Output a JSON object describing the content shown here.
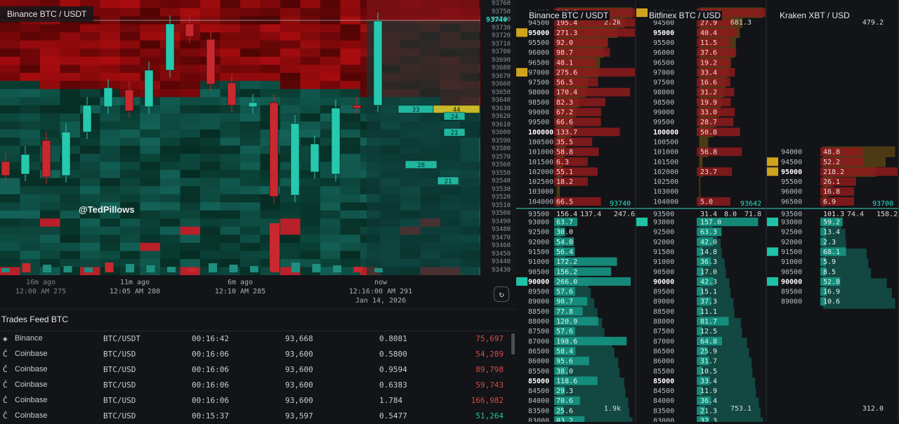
{
  "heatmap": {
    "title": "Binance BTC / USDT",
    "watermark": "@TedPillows",
    "price_labels": [
      "93760",
      "93750",
      "93740",
      "93730",
      "93720",
      "93710",
      "93700",
      "93690",
      "93680",
      "93670",
      "93660",
      "93650",
      "93640",
      "93630",
      "93620",
      "93610",
      "93600",
      "93590",
      "93580",
      "93570",
      "93560",
      "93550",
      "93540",
      "93530",
      "93520",
      "93510",
      "93500",
      "93490",
      "93480",
      "93470",
      "93460",
      "93450",
      "93440",
      "93430"
    ],
    "current_price": "93740",
    "bubbles": [
      "33",
      "44",
      "24",
      "21",
      "28",
      "21"
    ],
    "time_ticks": [
      {
        "rel": "16m ago",
        "abs": "12:00 AM 275"
      },
      {
        "rel": "11m ago",
        "abs": "12:05 AM 280"
      },
      {
        "rel": "6m ago",
        "abs": "12:10 AM 285"
      },
      {
        "rel": "now",
        "abs": "12:16:00 AM 291",
        "date": "Jan 14, 2026"
      }
    ],
    "refresh_icon": "refresh-icon"
  },
  "trades_feed": {
    "title": "Trades Feed BTC",
    "rows": [
      {
        "exchange": "Binance",
        "icon": "binance-icon",
        "pair": "BTC/USDT",
        "time": "00:16:42",
        "price": "93,668",
        "qty": "0.8081",
        "value": "75,697",
        "side": "sell"
      },
      {
        "exchange": "Coinbase",
        "icon": "coinbase-icon",
        "pair": "BTC/USD",
        "time": "00:16:06",
        "price": "93,600",
        "qty": "0.5800",
        "value": "54,289",
        "side": "sell"
      },
      {
        "exchange": "Coinbase",
        "icon": "coinbase-icon",
        "pair": "BTC/USD",
        "time": "00:16:06",
        "price": "93,600",
        "qty": "0.9594",
        "value": "89,798",
        "side": "sell"
      },
      {
        "exchange": "Coinbase",
        "icon": "coinbase-icon",
        "pair": "BTC/USD",
        "time": "00:16:06",
        "price": "93,600",
        "qty": "0.6383",
        "value": "59,743",
        "side": "sell"
      },
      {
        "exchange": "Coinbase",
        "icon": "coinbase-icon",
        "pair": "BTC/USD",
        "time": "00:16:06",
        "price": "93,600",
        "qty": "1.784",
        "value": "166,982",
        "side": "sell"
      },
      {
        "exchange": "Coinbase",
        "icon": "coinbase-icon",
        "pair": "BTC/USD",
        "time": "00:15:37",
        "price": "93,597",
        "qty": "0.5477",
        "value": "51,264",
        "side": "buy"
      }
    ]
  },
  "orderbooks": [
    {
      "title": "Binance BTC / USDT",
      "top_total": "2.2k",
      "bottom_total": "1.9k",
      "mid_price": "93740",
      "mid_row": {
        "price": "93500",
        "ask": "156.4",
        "bid": "137.4",
        "imbalance": "247.6"
      },
      "asks": [
        {
          "price": "104000",
          "qty": "66.5"
        },
        {
          "price": "103000",
          "qty": ""
        },
        {
          "price": "102500",
          "qty": "18.2"
        },
        {
          "price": "102000",
          "qty": "55.1"
        },
        {
          "price": "101500",
          "qty": "6.3"
        },
        {
          "price": "101000",
          "qty": "58.8"
        },
        {
          "price": "100500",
          "qty": "35.5"
        },
        {
          "price": "100000",
          "qty": "133.7"
        },
        {
          "price": "99500",
          "qty": "66.6"
        },
        {
          "price": "99000",
          "qty": "67.2"
        },
        {
          "price": "98500",
          "qty": "82.3"
        },
        {
          "price": "98000",
          "qty": "170.4"
        },
        {
          "price": "97500",
          "qty": "56.5"
        },
        {
          "price": "97000",
          "qty": "275.6"
        },
        {
          "price": "96500",
          "qty": "48.1"
        },
        {
          "price": "96000",
          "qty": "98.7"
        },
        {
          "price": "95500",
          "qty": "92.0"
        },
        {
          "price": "95000",
          "qty": "271.3"
        },
        {
          "price": "94500",
          "qty": "195.4"
        },
        {
          "price": "94000",
          "qty": "207.3"
        }
      ],
      "bids": [
        {
          "price": "93000",
          "qty": "63.7"
        },
        {
          "price": "92500",
          "qty": "30.0"
        },
        {
          "price": "92000",
          "qty": "54.0"
        },
        {
          "price": "91500",
          "qty": "56.4"
        },
        {
          "price": "91000",
          "qty": "172.2"
        },
        {
          "price": "90500",
          "qty": "156.2"
        },
        {
          "price": "90000",
          "qty": "266.0"
        },
        {
          "price": "89500",
          "qty": "57.6"
        },
        {
          "price": "89000",
          "qty": "90.7"
        },
        {
          "price": "88500",
          "qty": "77.8"
        },
        {
          "price": "88000",
          "qty": "120.9"
        },
        {
          "price": "87500",
          "qty": "57.6"
        },
        {
          "price": "87000",
          "qty": "198.6"
        },
        {
          "price": "86500",
          "qty": "58.4"
        },
        {
          "price": "86000",
          "qty": "95.6"
        },
        {
          "price": "85500",
          "qty": "38.0"
        },
        {
          "price": "85000",
          "qty": "118.6"
        },
        {
          "price": "84500",
          "qty": "29.3"
        },
        {
          "price": "84000",
          "qty": "70.6"
        },
        {
          "price": "83500",
          "qty": "25.6"
        },
        {
          "price": "83000",
          "qty": "83.2"
        }
      ]
    },
    {
      "title": "Bitfinex BTC / USD",
      "top_total": "681.3",
      "bottom_total": "753.1",
      "mid_price": "93642",
      "mid_row": {
        "price": "93500",
        "ask": "31.4",
        "bid": "8.0",
        "imbalance": "71.8"
      },
      "asks": [
        {
          "price": "104000",
          "qty": "5.0"
        },
        {
          "price": "103000",
          "qty": ""
        },
        {
          "price": "102500",
          "qty": ""
        },
        {
          "price": "102000",
          "qty": "23.7"
        },
        {
          "price": "101500",
          "qty": ""
        },
        {
          "price": "101000",
          "qty": "56.8"
        },
        {
          "price": "100500",
          "qty": ""
        },
        {
          "price": "100000",
          "qty": "50.8"
        },
        {
          "price": "99500",
          "qty": "28.7"
        },
        {
          "price": "99000",
          "qty": "33.0"
        },
        {
          "price": "98500",
          "qty": "19.9"
        },
        {
          "price": "98000",
          "qty": "31.2"
        },
        {
          "price": "97500",
          "qty": "16.6"
        },
        {
          "price": "97000",
          "qty": "33.4"
        },
        {
          "price": "96500",
          "qty": "19.2"
        },
        {
          "price": "96000",
          "qty": "37.6"
        },
        {
          "price": "95500",
          "qty": "11.5"
        },
        {
          "price": "95000",
          "qty": "40.4"
        },
        {
          "price": "94500",
          "qty": "27.9"
        },
        {
          "price": "94000",
          "qty": "210.6"
        }
      ],
      "bids": [
        {
          "price": "93000",
          "qty": "157.0"
        },
        {
          "price": "92500",
          "qty": "63.3"
        },
        {
          "price": "92000",
          "qty": "42.0"
        },
        {
          "price": "91500",
          "qty": "14.8"
        },
        {
          "price": "91000",
          "qty": "36.3"
        },
        {
          "price": "90500",
          "qty": "17.0"
        },
        {
          "price": "90000",
          "qty": "42.3"
        },
        {
          "price": "89500",
          "qty": "15.1"
        },
        {
          "price": "89000",
          "qty": "37.3"
        },
        {
          "price": "88500",
          "qty": "11.1"
        },
        {
          "price": "88000",
          "qty": "81.7"
        },
        {
          "price": "87500",
          "qty": "12.5"
        },
        {
          "price": "87000",
          "qty": "64.8"
        },
        {
          "price": "86500",
          "qty": "25.9"
        },
        {
          "price": "86000",
          "qty": "31.7"
        },
        {
          "price": "85500",
          "qty": "10.5"
        },
        {
          "price": "85000",
          "qty": "33.4"
        },
        {
          "price": "84500",
          "qty": "11.9"
        },
        {
          "price": "84000",
          "qty": "36.4"
        },
        {
          "price": "83500",
          "qty": "21.3"
        },
        {
          "price": "83000",
          "qty": "32.3"
        }
      ]
    },
    {
      "title": "Kraken XBT / USD",
      "top_total": "479.2",
      "bottom_total": "312.0",
      "mid_price": "93700",
      "mid_row": {
        "price": "93500",
        "ask": "101.3",
        "bid": "74.4",
        "imbalance": "158.2"
      },
      "asks": [
        {
          "price": "96500",
          "qty": "6.9"
        },
        {
          "price": "96000",
          "qty": "16.8"
        },
        {
          "price": "95500",
          "qty": "26.1"
        },
        {
          "price": "95000",
          "qty": "218.2"
        },
        {
          "price": "94500",
          "qty": "52.2"
        },
        {
          "price": "94000",
          "qty": "48.8"
        }
      ],
      "bids": [
        {
          "price": "93000",
          "qty": "59.2"
        },
        {
          "price": "92500",
          "qty": "13.4"
        },
        {
          "price": "92000",
          "qty": "2.3"
        },
        {
          "price": "91500",
          "qty": "68.1"
        },
        {
          "price": "91000",
          "qty": "5.9"
        },
        {
          "price": "90500",
          "qty": "8.5"
        },
        {
          "price": "90000",
          "qty": "52.8"
        },
        {
          "price": "89500",
          "qty": "16.9"
        },
        {
          "price": "89000",
          "qty": "10.6"
        }
      ]
    }
  ],
  "colors": {
    "ask": "#d42a2a",
    "bid": "#16b39a",
    "highlight": "#e6b31e",
    "accent": "#27e0c8"
  }
}
